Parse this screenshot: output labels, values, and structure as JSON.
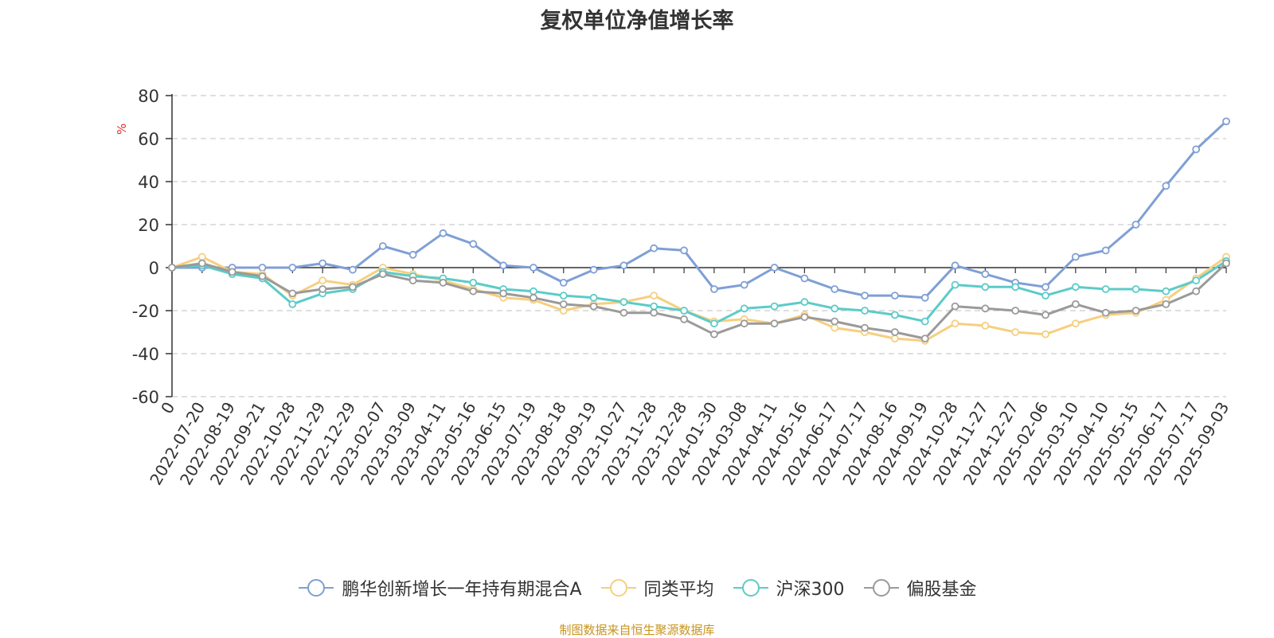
{
  "title": "复权单位净值增长率",
  "source": "制图数据来自恒生聚源数据库",
  "chart_data": {
    "type": "line",
    "title": "复权单位净值增长率",
    "ylabel": "%",
    "ylim": [
      -60,
      80
    ],
    "yticks": [
      -60,
      -40,
      -20,
      0,
      20,
      40,
      60,
      80
    ],
    "grid": true,
    "legend_position": "bottom",
    "x_tick_labels": [
      "0",
      "2022-07-20",
      "2022-08-19",
      "2022-09-21",
      "2022-10-28",
      "2022-11-29",
      "2022-12-29",
      "2023-02-07",
      "2023-03-09",
      "2023-04-11",
      "2023-05-16",
      "2023-06-15",
      "2023-07-19",
      "2023-08-18",
      "2023-09-19",
      "2023-10-27",
      "2023-11-28",
      "2023-12-28",
      "2024-01-30",
      "2024-03-08",
      "2024-04-11",
      "2024-05-16",
      "2024-06-17",
      "2024-07-17",
      "2024-08-16",
      "2024-09-19",
      "2024-10-28",
      "2024-11-27",
      "2024-12-27",
      "2025-02-06",
      "2025-03-10",
      "2025-04-10",
      "2025-05-15",
      "2025-06-17",
      "2025-07-17",
      "2025-09-03"
    ],
    "x_index": [
      0,
      1,
      2,
      3,
      4,
      5,
      6,
      7,
      8,
      9,
      10,
      11,
      12,
      13,
      14,
      15,
      16,
      17,
      18,
      19,
      20,
      21,
      22,
      23,
      24,
      25,
      26,
      27,
      28,
      29,
      30,
      31,
      32,
      33,
      34,
      35
    ],
    "series": [
      {
        "name": "鹏华创新增长一年持有期混合A",
        "color": "#7f9fd5",
        "values": [
          0,
          0,
          0,
          0,
          0,
          2,
          -1,
          10,
          6,
          16,
          11,
          1,
          0,
          -7,
          -1,
          1,
          9,
          8,
          -10,
          -8,
          0,
          -5,
          -10,
          -13,
          -13,
          -14,
          1,
          -3,
          -7,
          -9,
          5,
          8,
          20,
          38,
          55,
          68
        ]
      },
      {
        "name": "同类平均",
        "color": "#f6cf7f",
        "values": [
          0,
          5,
          -2,
          -3,
          -13,
          -6,
          -8,
          0,
          -3,
          -6,
          -10,
          -14,
          -15,
          -20,
          -17,
          -16,
          -13,
          -20,
          -25,
          -24,
          -26,
          -22,
          -28,
          -30,
          -33,
          -34,
          -26,
          -27,
          -30,
          -31,
          -26,
          -22,
          -21,
          -15,
          -5,
          5
        ]
      },
      {
        "name": "沪深300",
        "color": "#5ccbc8",
        "values": [
          0,
          1,
          -3,
          -5,
          -17,
          -12,
          -10,
          -2,
          -4,
          -5,
          -7,
          -10,
          -11,
          -13,
          -14,
          -16,
          -18,
          -20,
          -26,
          -19,
          -18,
          -16,
          -19,
          -20,
          -22,
          -25,
          -8,
          -9,
          -9,
          -13,
          -9,
          -10,
          -10,
          -11,
          -6,
          3
        ]
      },
      {
        "name": "偏股基金",
        "color": "#9a9a9a",
        "values": [
          0,
          2,
          -2,
          -4,
          -12,
          -10,
          -9,
          -3,
          -6,
          -7,
          -11,
          -12,
          -14,
          -17,
          -18,
          -21,
          -21,
          -24,
          -31,
          -26,
          -26,
          -23,
          -25,
          -28,
          -30,
          -33,
          -18,
          -19,
          -20,
          -22,
          -17,
          -21,
          -20,
          -17,
          -11,
          2
        ]
      }
    ]
  },
  "legend": [
    {
      "label": "鹏华创新增长一年持有期混合A",
      "color": "#7f9fd5"
    },
    {
      "label": "同类平均",
      "color": "#f6cf7f"
    },
    {
      "label": "沪深300",
      "color": "#5ccbc8"
    },
    {
      "label": "偏股基金",
      "color": "#9a9a9a"
    }
  ]
}
